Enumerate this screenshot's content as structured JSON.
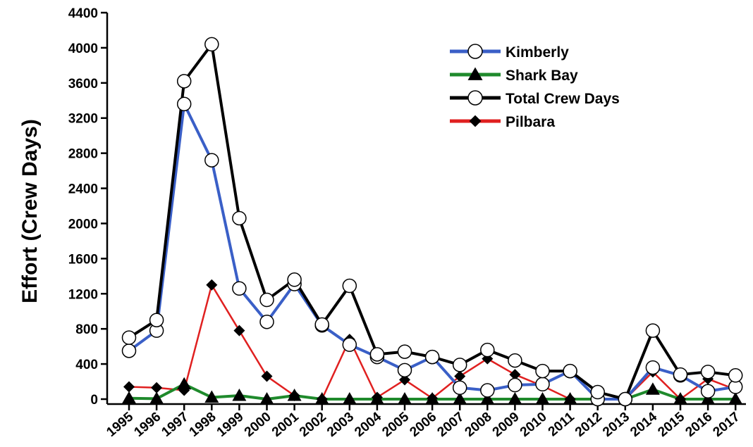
{
  "chart_data": {
    "type": "line",
    "title": "",
    "xlabel": "",
    "ylabel": "Effort (Crew Days)",
    "x": [
      "1995",
      "1996",
      "1997",
      "1998",
      "1999",
      "2000",
      "2001",
      "2002",
      "2003",
      "2004",
      "2005",
      "2006",
      "2007",
      "2008",
      "2009",
      "2010",
      "2011",
      "2012",
      "2013",
      "2014",
      "2015",
      "2016",
      "2017"
    ],
    "ylim": [
      0,
      4400
    ],
    "yticks": [
      0,
      400,
      800,
      1200,
      1600,
      2000,
      2400,
      2800,
      3200,
      3600,
      4000,
      4400
    ],
    "yticks_labels": [
      "0",
      "400",
      "800",
      "1200",
      "1600",
      "2000",
      "2400",
      "2800",
      "3200",
      "3600",
      "4000",
      "4400"
    ],
    "grid": false,
    "legend_position": "top-right",
    "series": [
      {
        "name": "Kimberly",
        "color": "#3a5fc7",
        "marker": "open-circle",
        "values": [
          550,
          780,
          3360,
          2720,
          1260,
          880,
          1310,
          840,
          620,
          480,
          330,
          480,
          130,
          100,
          160,
          170,
          320,
          0,
          0,
          360,
          270,
          90,
          140
        ]
      },
      {
        "name": "Shark Bay",
        "color": "#1f8a2c",
        "marker": "filled-triangle",
        "values": [
          10,
          5,
          170,
          20,
          40,
          0,
          40,
          0,
          0,
          0,
          0,
          0,
          0,
          0,
          0,
          0,
          0,
          0,
          0,
          110,
          0,
          0,
          0
        ]
      },
      {
        "name": "Total Crew Days",
        "color": "#000000",
        "marker": "open-circle",
        "values": [
          700,
          900,
          3620,
          4040,
          2060,
          1130,
          1360,
          850,
          1290,
          510,
          540,
          480,
          390,
          560,
          440,
          320,
          320,
          80,
          0,
          780,
          280,
          310,
          270
        ]
      },
      {
        "name": "Pilbara",
        "color": "#e02020",
        "marker": "filled-diamond",
        "values": [
          140,
          130,
          100,
          1300,
          780,
          260,
          40,
          0,
          680,
          20,
          220,
          10,
          260,
          460,
          280,
          150,
          0,
          0,
          0,
          310,
          0,
          230,
          110
        ]
      }
    ]
  }
}
